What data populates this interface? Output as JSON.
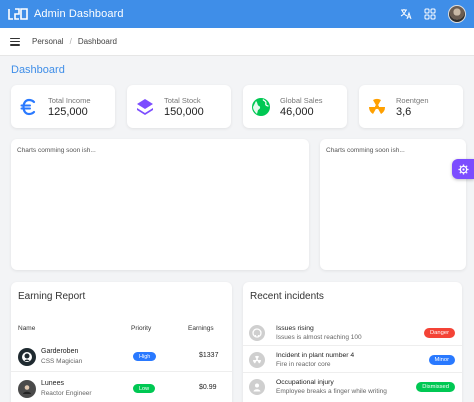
{
  "app": {
    "title": "Admin Dashboard"
  },
  "breadcrumb": [
    "Personal",
    "Dashboard"
  ],
  "page_title": "Dashboard",
  "stats": [
    {
      "label": "Total Income",
      "value": "125,000",
      "icon": "euro-icon",
      "color": "#2979ff"
    },
    {
      "label": "Total Stock",
      "value": "150,000",
      "icon": "layers-icon",
      "color": "#7c4dff"
    },
    {
      "label": "Global Sales",
      "value": "46,000",
      "icon": "globe-icon",
      "color": "#00c853"
    },
    {
      "label": "Roentgen",
      "value": "3,6",
      "icon": "radiation-icon",
      "color": "#ffa000"
    }
  ],
  "charts": {
    "left_text": "Charts comming soon ish...",
    "right_text": "Charts comming soon ish..."
  },
  "earning_report": {
    "title": "Earning Report",
    "columns": {
      "name": "Name",
      "priority": "Priority",
      "earnings": "Earnings"
    },
    "rows": [
      {
        "name": "Garderoben",
        "role": "CSS Magician",
        "priority": "High",
        "priority_color": "#2979ff",
        "earnings": "$1337"
      },
      {
        "name": "Lunees",
        "role": "Reactor Engineer",
        "priority": "Low",
        "priority_color": "#00c853",
        "earnings": "$0.99"
      }
    ]
  },
  "incidents": {
    "title": "Recent incidents",
    "items": [
      {
        "title": "Issues rising",
        "desc": "Issues is almost reaching 100",
        "badge": "Danger",
        "badge_color": "#f44336",
        "icon": "github-icon"
      },
      {
        "title": "Incident in plant number 4",
        "desc": "Fire in reactor core",
        "badge": "Minor",
        "badge_color": "#2979ff",
        "icon": "radiation-icon"
      },
      {
        "title": "Occupational injury",
        "desc": "Employee breaks a finger while writing",
        "badge": "Dismissed",
        "badge_color": "#00c853",
        "icon": "user-icon"
      }
    ]
  },
  "colors": {
    "primary": "#3f8ee8",
    "accent": "#7c4dff"
  }
}
